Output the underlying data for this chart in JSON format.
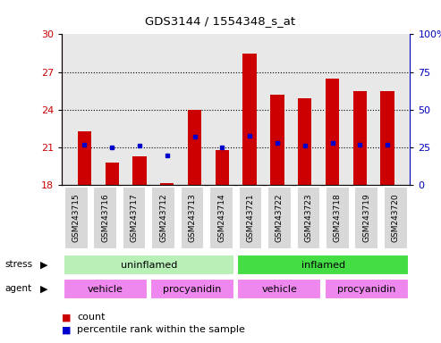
{
  "title": "GDS3144 / 1554348_s_at",
  "samples": [
    "GSM243715",
    "GSM243716",
    "GSM243717",
    "GSM243712",
    "GSM243713",
    "GSM243714",
    "GSM243721",
    "GSM243722",
    "GSM243723",
    "GSM243718",
    "GSM243719",
    "GSM243720"
  ],
  "count_values": [
    22.3,
    19.8,
    20.3,
    18.2,
    24.0,
    20.8,
    28.5,
    25.2,
    24.9,
    26.5,
    25.5,
    25.5
  ],
  "percentile_values": [
    27,
    25,
    26,
    20,
    32,
    25,
    33,
    28,
    26,
    28,
    27,
    27
  ],
  "ylim_left": [
    18,
    30
  ],
  "ylim_right": [
    0,
    100
  ],
  "yticks_left": [
    18,
    21,
    24,
    27,
    30
  ],
  "yticks_right": [
    0,
    25,
    50,
    75,
    100
  ],
  "bar_color": "#cc0000",
  "dot_color": "#0000cc",
  "bar_width": 0.5,
  "stress_labels": [
    [
      "uninflamed",
      0,
      6
    ],
    [
      "inflamed",
      6,
      12
    ]
  ],
  "stress_colors": [
    "#b8f0b8",
    "#44dd44"
  ],
  "agent_labels": [
    [
      "vehicle",
      0,
      3
    ],
    [
      "procyanidin",
      3,
      6
    ],
    [
      "vehicle",
      6,
      9
    ],
    [
      "procyanidin",
      9,
      12
    ]
  ],
  "agent_color": "#ee88ee",
  "grid_dotted_at": [
    21,
    24,
    27
  ],
  "plot_bg_color": "#e8e8e8",
  "axis_color_left": "#cc0000",
  "axis_color_right": "#0000bb",
  "legend_count_label": "count",
  "legend_percentile_label": "percentile rank within the sample",
  "sample_box_color": "#d8d8d8"
}
